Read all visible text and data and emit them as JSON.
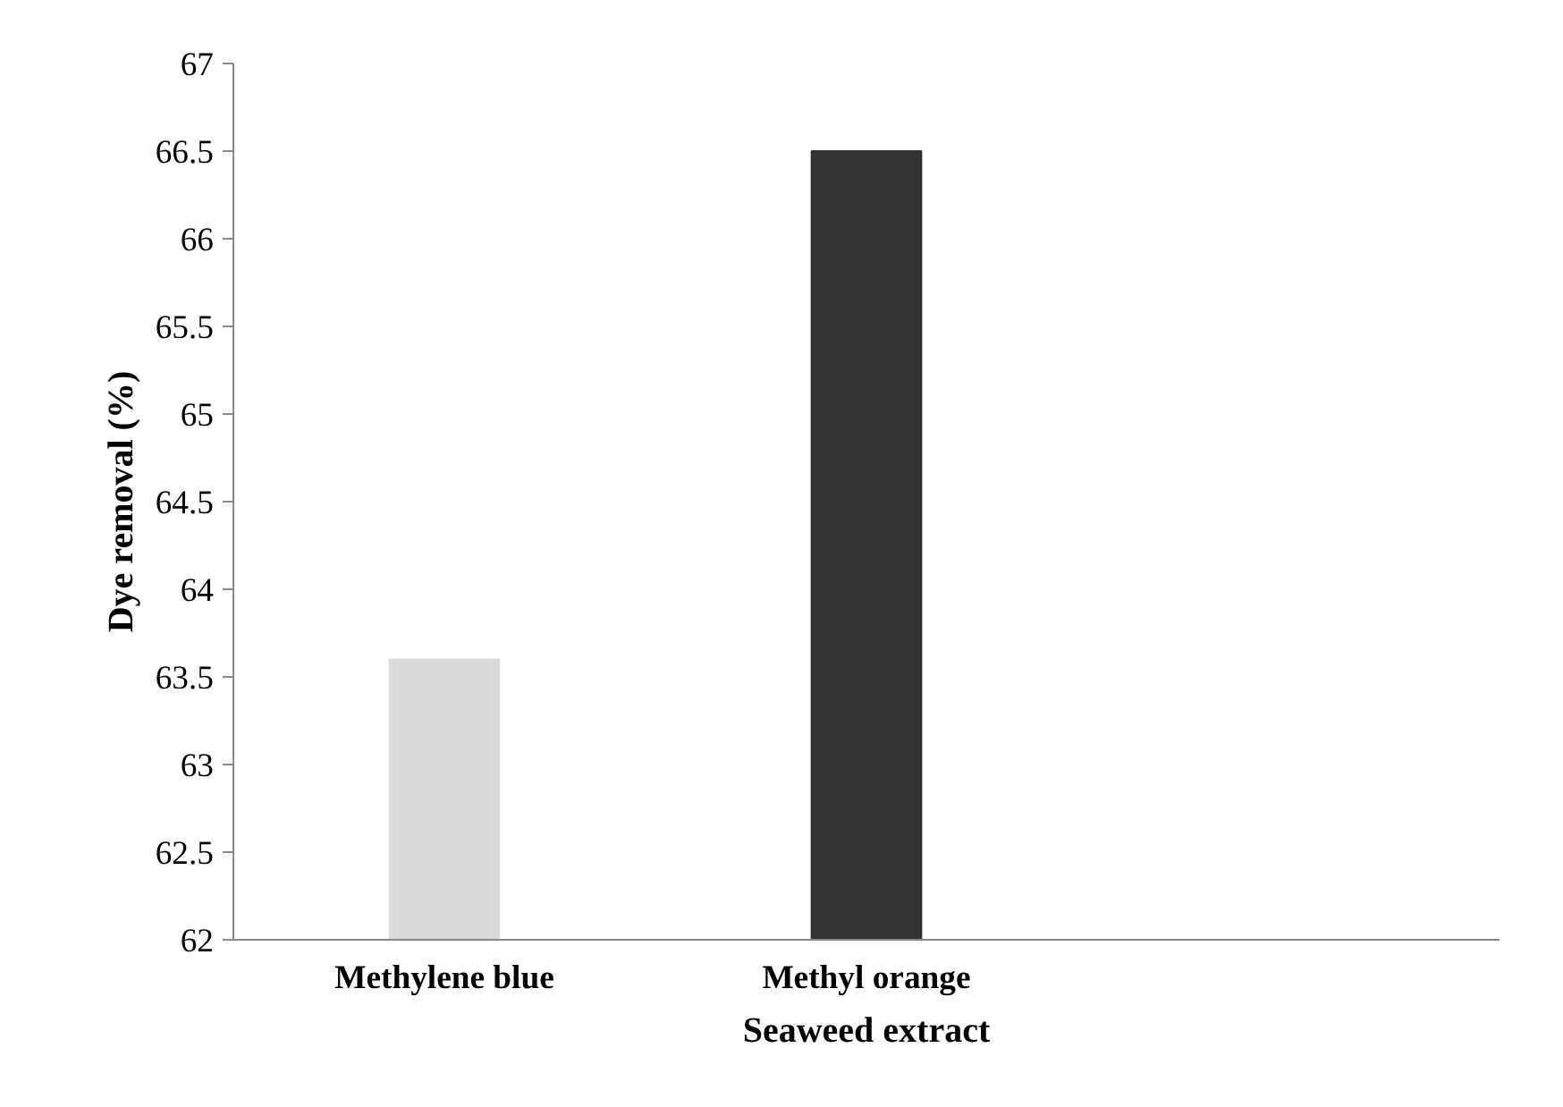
{
  "chart_data": {
    "type": "bar",
    "xlabel": "Seaweed extract",
    "ylabel": "Dye removal (%)",
    "categories": [
      "Methylene blue",
      "Methyl orange",
      null
    ],
    "values": [
      63.6,
      66.5,
      null
    ],
    "colors": [
      "#d9dadb",
      "#333333",
      "#333333"
    ],
    "ylim": [
      62,
      67
    ],
    "yticks": [
      62,
      {
        "value": 62.5,
        "label": "62.5"
      },
      63,
      {
        "value": 63.5,
        "label": "63.5"
      },
      64,
      {
        "value": 64.5,
        "label": "64.5"
      },
      65,
      {
        "value": 65.5,
        "label": "65.5"
      },
      66,
      {
        "value": 66.5,
        "label": "66.5"
      },
      67
    ],
    "grid": false
  }
}
